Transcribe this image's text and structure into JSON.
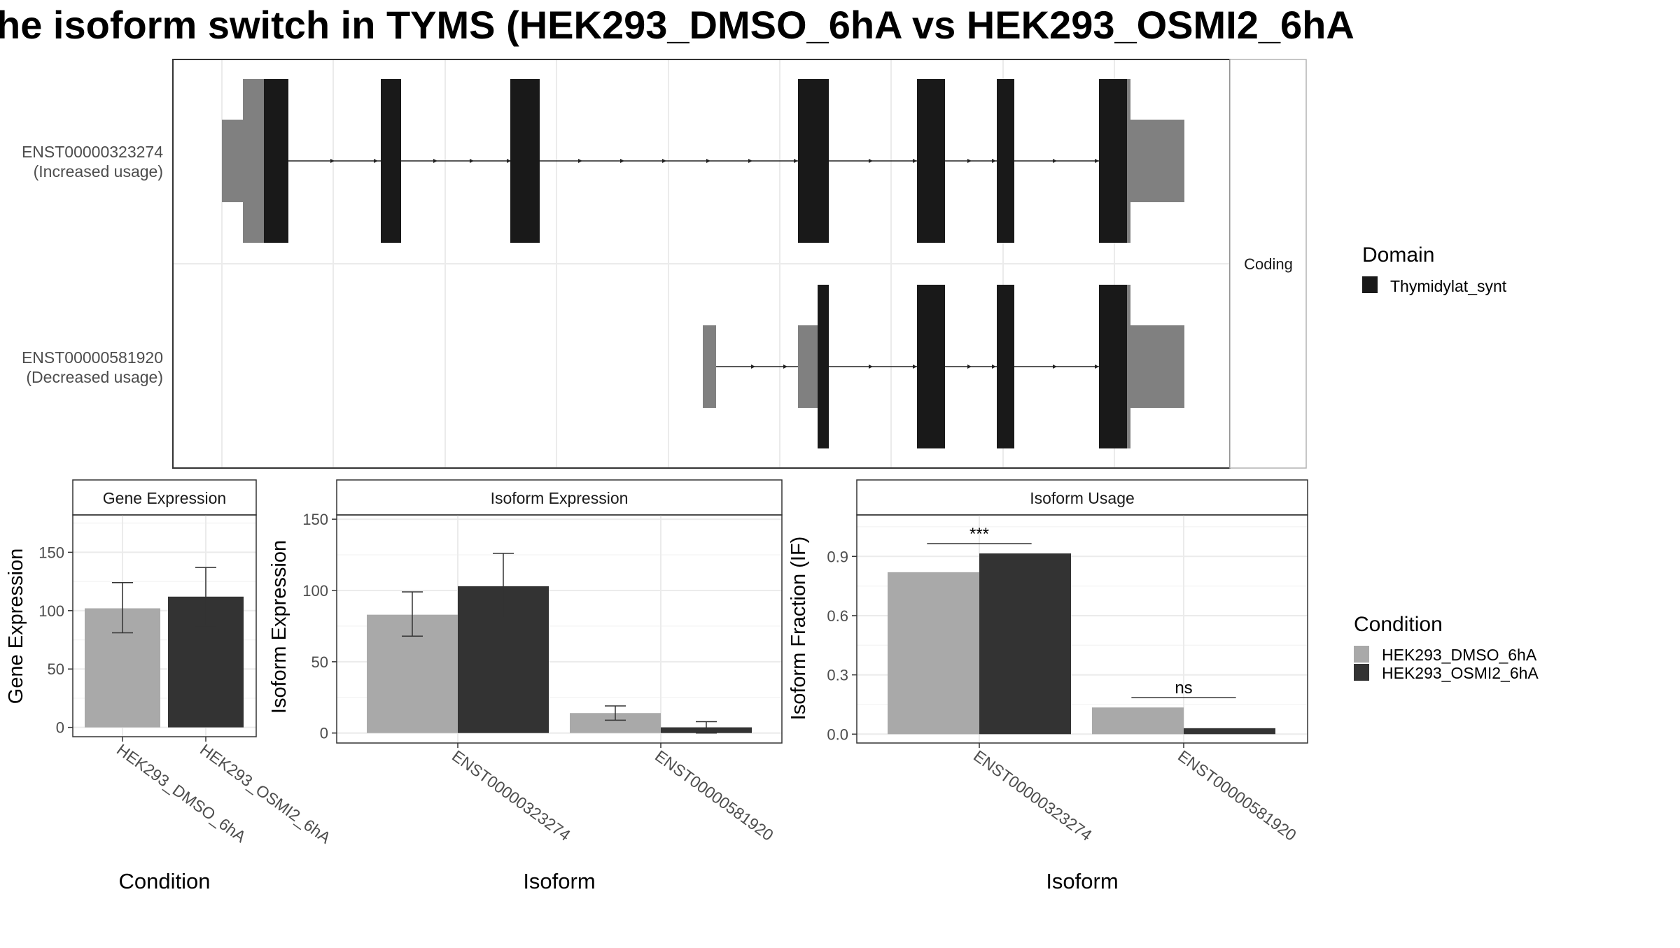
{
  "title": "he isoform switch in TYMS (HEK293_DMSO_6hA vs HEK293_OSMI2_6hA",
  "colors": {
    "dmso": "#a9a9a9",
    "osmi2": "#333333",
    "domain": "#191919",
    "utr": "#808080",
    "grid_major": "#ebebeb",
    "grid_minor": "#f5f5f5",
    "panel_border": "#333333",
    "strip_border": "#b3b3b3"
  },
  "structure": {
    "facet_label": "Coding",
    "transcripts": [
      {
        "label_line1": "ENST00000323274",
        "label_line2": "(Increased usage)"
      },
      {
        "label_line1": "ENST00000581920",
        "label_line2": "(Decreased usage)"
      }
    ],
    "legend": {
      "title": "Domain",
      "items": [
        {
          "label": "Thymidylat_synt",
          "color": "#191919"
        }
      ]
    }
  },
  "condition_legend": {
    "title": "Condition",
    "items": [
      {
        "label": "HEK293_DMSO_6hA",
        "color": "#a9a9a9"
      },
      {
        "label": "HEK293_OSMI2_6hA",
        "color": "#333333"
      }
    ]
  },
  "chart_data": [
    {
      "type": "bar",
      "title": "Gene Expression",
      "xlabel": "Condition",
      "ylabel": "Gene Expression",
      "categories": [
        "HEK293_DMSO_6hA",
        "HEK293_OSMI2_6hA"
      ],
      "values": [
        102,
        112
      ],
      "errors": [
        [
          81,
          124
        ],
        [
          87,
          137
        ]
      ],
      "ylim": [
        -8,
        182
      ],
      "yticks": [
        "0",
        "50",
        "100",
        "150"
      ],
      "grid": true
    },
    {
      "type": "bar",
      "title": "Isoform Expression",
      "xlabel": "Isoform",
      "ylabel": "Isoform Expression",
      "categories": [
        "ENST00000323274",
        "ENST00000581920"
      ],
      "series": [
        {
          "name": "HEK293_DMSO_6hA",
          "values": [
            83,
            14
          ],
          "errors": [
            [
              68,
              99
            ],
            [
              9,
              19
            ]
          ]
        },
        {
          "name": "HEK293_OSMI2_6hA",
          "values": [
            103,
            4
          ],
          "errors": [
            [
              81,
              126
            ],
            [
              0,
              8
            ]
          ]
        }
      ],
      "ylim": [
        -7,
        153
      ],
      "yticks": [
        "0",
        "50",
        "100",
        "150"
      ],
      "grid": true,
      "legend": "right"
    },
    {
      "type": "bar",
      "title": "Isoform Usage",
      "xlabel": "Isoform",
      "ylabel": "Isoform Fraction (IF)",
      "categories": [
        "ENST00000323274",
        "ENST00000581920"
      ],
      "series": [
        {
          "name": "HEK293_DMSO_6hA",
          "values": [
            0.82,
            0.135
          ]
        },
        {
          "name": "HEK293_OSMI2_6hA",
          "values": [
            0.915,
            0.03
          ]
        }
      ],
      "significance": [
        "***",
        "ns"
      ],
      "ylim": [
        -0.045,
        1.11
      ],
      "yticks": [
        "0.0",
        "0.3",
        "0.6",
        "0.9"
      ],
      "grid": true,
      "legend": "right"
    }
  ]
}
